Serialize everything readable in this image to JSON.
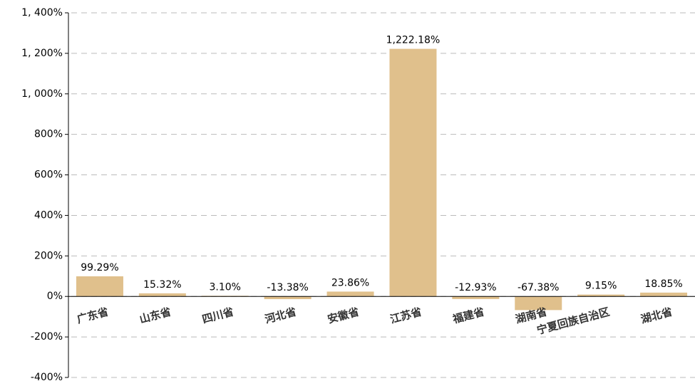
{
  "chart_data": {
    "type": "bar",
    "categories": [
      "广东省",
      "山东省",
      "四川省",
      "河北省",
      "安徽省",
      "江苏省",
      "福建省",
      "湖南省",
      "宁夏回族自治区",
      "湖北省"
    ],
    "values": [
      99.29,
      15.32,
      3.1,
      -13.38,
      23.86,
      1222.18,
      -12.93,
      -67.38,
      9.15,
      18.85
    ],
    "value_labels": [
      "99.29%",
      "15.32%",
      "3.10%",
      "-13.38%",
      "23.86%",
      "1,222.18%",
      "-12.93%",
      "-67.38%",
      "9.15%",
      "18.85%"
    ],
    "color": "#e0c08c",
    "ylim": [
      -400,
      1400
    ],
    "yticks": [
      {
        "value": -400,
        "label": "-400%"
      },
      {
        "value": -200,
        "label": "-200%"
      },
      {
        "value": 0,
        "label": "0%"
      },
      {
        "value": 200,
        "label": "200%"
      },
      {
        "value": 400,
        "label": "400%"
      },
      {
        "value": 600,
        "label": "600%"
      },
      {
        "value": 800,
        "label": "800%"
      },
      {
        "value": 1000,
        "label": "1, 000%"
      },
      {
        "value": 1200,
        "label": "1, 200%"
      },
      {
        "value": 1400,
        "label": "1, 400%"
      }
    ],
    "grid": true
  }
}
